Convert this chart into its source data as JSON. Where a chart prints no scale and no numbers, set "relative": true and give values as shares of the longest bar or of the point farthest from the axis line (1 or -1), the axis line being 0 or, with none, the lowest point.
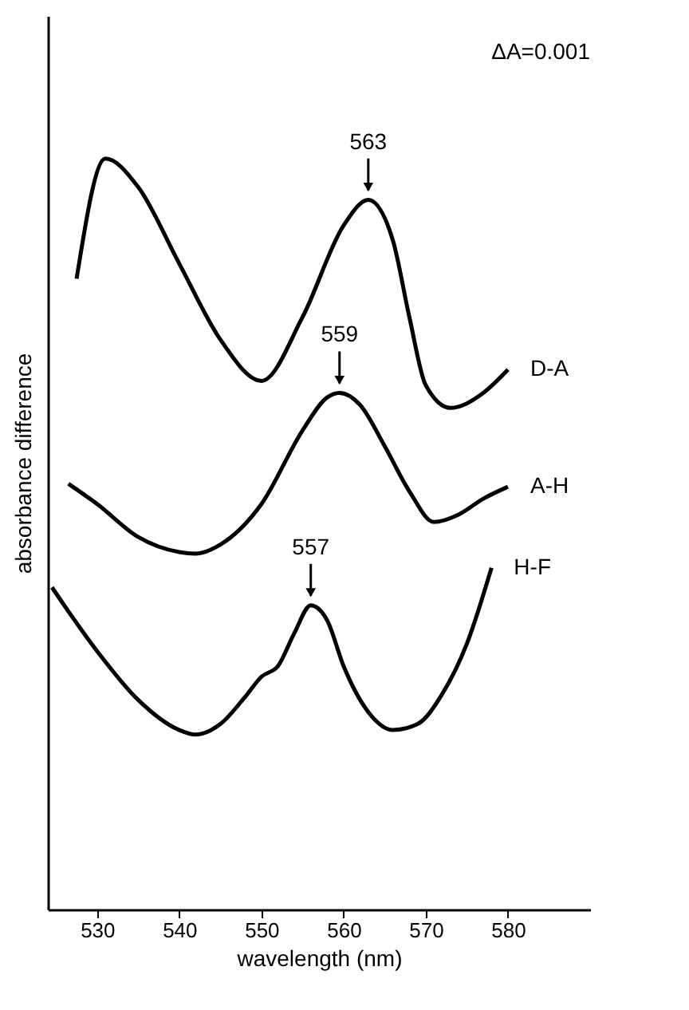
{
  "chart_data": {
    "type": "line",
    "relative": true,
    "xlabel": "wavelength (nm)",
    "ylabel": "absorbance difference",
    "xlim": [
      524,
      590
    ],
    "xticks": [
      530,
      540,
      550,
      560,
      570,
      580
    ],
    "line_style": "solid",
    "marker": "none",
    "grid": false,
    "legend": false,
    "annotations": [
      "ΔA=0.001",
      {
        "text": "563",
        "x": 563,
        "y": 0.945
      },
      {
        "text": "559",
        "x": 559.5,
        "y": 0.688
      },
      {
        "text": "557",
        "x": 556,
        "y": 0.405
      }
    ],
    "series": [
      {
        "name": "D-A",
        "color": "#000000",
        "x": [
          527.5,
          531,
          535,
          540,
          545,
          550,
          555,
          560,
          563,
          566,
          568,
          570,
          573,
          577,
          580
        ],
        "values": [
          0.84,
          1.0,
          0.962,
          0.86,
          0.759,
          0.704,
          0.789,
          0.911,
          0.945,
          0.891,
          0.789,
          0.698,
          0.668,
          0.688,
          0.719
        ]
      },
      {
        "name": "A-H",
        "color": "#000000",
        "x": [
          526.5,
          530,
          535,
          540,
          542,
          545,
          550,
          555,
          558,
          559.5,
          562,
          565,
          568,
          571,
          574,
          577,
          580
        ],
        "values": [
          0.567,
          0.54,
          0.496,
          0.476,
          0.474,
          0.486,
          0.54,
          0.638,
          0.682,
          0.688,
          0.672,
          0.617,
          0.557,
          0.516,
          0.526,
          0.547,
          0.563
        ]
      },
      {
        "name": "H-F",
        "color": "#000000",
        "x": [
          524.5,
          530,
          535,
          540,
          542,
          545,
          548,
          550,
          552,
          554,
          556,
          558,
          560,
          563,
          566,
          569,
          572,
          575,
          578
        ],
        "values": [
          0.429,
          0.344,
          0.279,
          0.239,
          0.233,
          0.247,
          0.283,
          0.31,
          0.324,
          0.368,
          0.405,
          0.385,
          0.324,
          0.263,
          0.239,
          0.247,
          0.287,
          0.354,
          0.455
        ]
      }
    ]
  }
}
